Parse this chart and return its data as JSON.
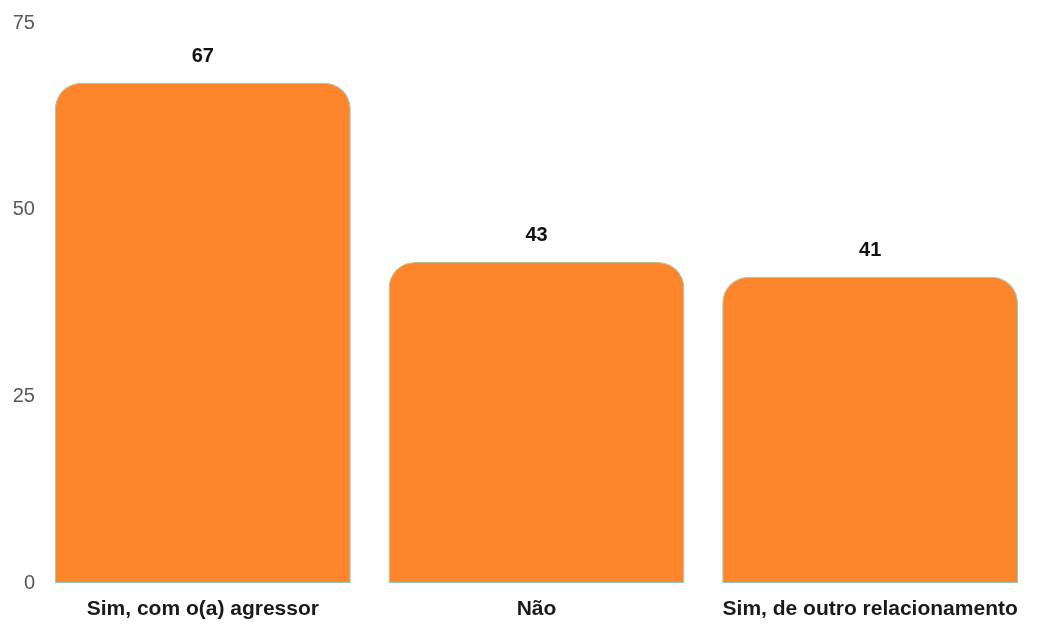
{
  "chart_data": {
    "type": "bar",
    "categories": [
      "Sim, com o(a) agressor",
      "Não",
      "Sim, de outro relacionamento"
    ],
    "values": [
      67,
      43,
      41
    ],
    "color": "#fd852b",
    "ylim": [
      0,
      75
    ],
    "yticks": [
      0,
      25,
      50,
      75
    ],
    "data_labels": true
  }
}
